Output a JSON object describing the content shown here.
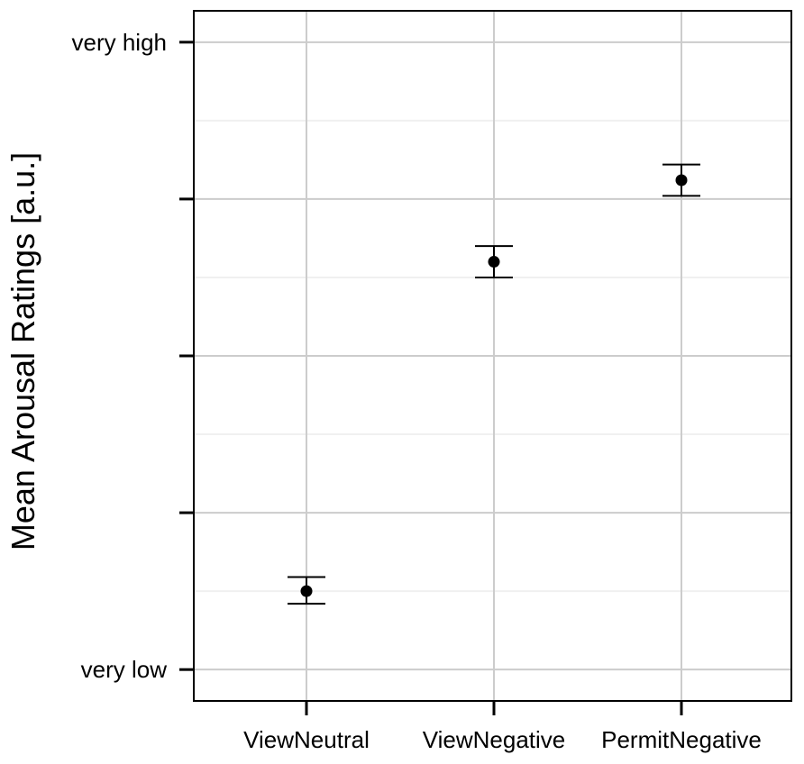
{
  "chart_data": {
    "type": "scatter",
    "categories": [
      "ViewNeutral",
      "ViewNegative",
      "PermitNegative"
    ],
    "series": [
      {
        "values": [
          1.5,
          3.6,
          4.12
        ],
        "error_low": [
          1.42,
          3.5,
          4.02
        ],
        "error_high": [
          1.59,
          3.7,
          4.22
        ]
      }
    ],
    "xlabel": "",
    "ylabel": "Mean Arousal Ratings [a.u.]",
    "ylim": [
      0.8,
      5.2
    ],
    "y_ticks": [
      1,
      2,
      3,
      4,
      5
    ],
    "y_tick_labels": [
      "very low",
      "",
      "",
      "",
      "very high"
    ],
    "grid": true
  }
}
